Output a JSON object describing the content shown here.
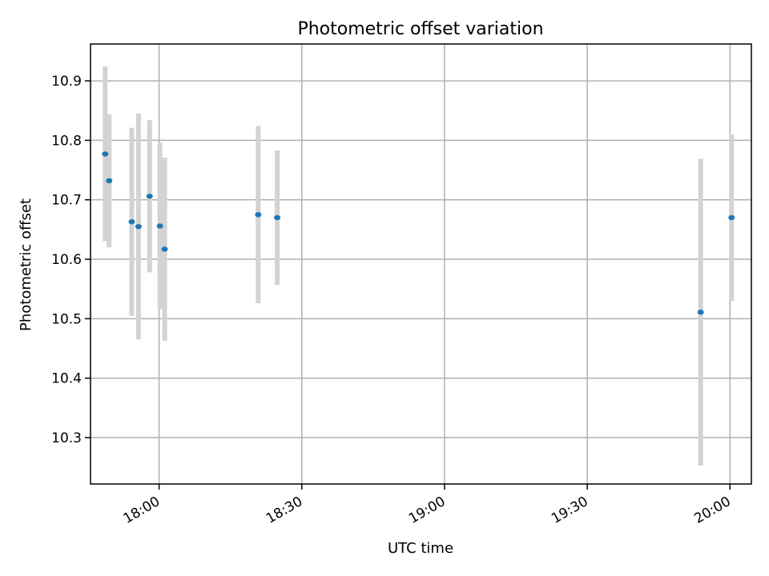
{
  "chart_data": {
    "type": "scatter",
    "title": "Photometric offset variation",
    "xlabel": "UTC time",
    "ylabel": "Photometric offset",
    "x_ticks": [
      "18:00",
      "18:30",
      "19:00",
      "19:30",
      "20:00"
    ],
    "y_ticks": [
      "10.3",
      "10.4",
      "10.5",
      "10.6",
      "10.7",
      "10.8",
      "10.9"
    ],
    "xlim": [
      "17:45:35",
      "20:04:30"
    ],
    "ylim": [
      10.222,
      10.962
    ],
    "grid": true,
    "errorbar_color": "#d3d3d3",
    "marker_color": "#1f77b4",
    "points": [
      {
        "x": "17:48:40",
        "y": 10.777,
        "yerr": 0.147
      },
      {
        "x": "17:49:30",
        "y": 10.732,
        "yerr": 0.112
      },
      {
        "x": "17:54:15",
        "y": 10.663,
        "yerr": 0.158
      },
      {
        "x": "17:55:40",
        "y": 10.655,
        "yerr": 0.19
      },
      {
        "x": "17:58:00",
        "y": 10.706,
        "yerr": 0.128
      },
      {
        "x": "18:00:10",
        "y": 10.656,
        "yerr": 0.14
      },
      {
        "x": "18:01:10",
        "y": 10.617,
        "yerr": 0.154
      },
      {
        "x": "18:20:50",
        "y": 10.675,
        "yerr": 0.149
      },
      {
        "x": "18:24:50",
        "y": 10.67,
        "yerr": 0.113
      },
      {
        "x": "19:53:50",
        "y": 10.511,
        "yerr": 0.258
      },
      {
        "x": "20:00:20",
        "y": 10.67,
        "yerr": 0.14
      }
    ]
  }
}
